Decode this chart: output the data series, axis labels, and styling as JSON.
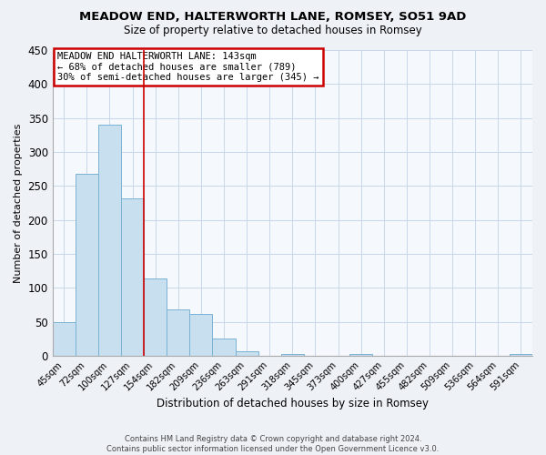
{
  "title": "MEADOW END, HALTERWORTH LANE, ROMSEY, SO51 9AD",
  "subtitle": "Size of property relative to detached houses in Romsey",
  "xlabel": "Distribution of detached houses by size in Romsey",
  "ylabel": "Number of detached properties",
  "bar_color": "#c8dff0",
  "bar_edge_color": "#7ab3d4",
  "categories": [
    "45sqm",
    "72sqm",
    "100sqm",
    "127sqm",
    "154sqm",
    "182sqm",
    "209sqm",
    "236sqm",
    "263sqm",
    "291sqm",
    "318sqm",
    "345sqm",
    "373sqm",
    "400sqm",
    "427sqm",
    "455sqm",
    "482sqm",
    "509sqm",
    "536sqm",
    "564sqm",
    "591sqm"
  ],
  "values": [
    50,
    268,
    340,
    232,
    114,
    68,
    62,
    25,
    7,
    0,
    2,
    0,
    0,
    2,
    0,
    0,
    0,
    0,
    0,
    0,
    2
  ],
  "ylim": [
    0,
    450
  ],
  "yticks": [
    0,
    50,
    100,
    150,
    200,
    250,
    300,
    350,
    400,
    450
  ],
  "annotation_text": "MEADOW END HALTERWORTH LANE: 143sqm\n← 68% of detached houses are smaller (789)\n30% of semi-detached houses are larger (345) →",
  "property_line_x": 3.5,
  "footnote": "Contains HM Land Registry data © Crown copyright and database right 2024.\nContains public sector information licensed under the Open Government Licence v3.0.",
  "background_color": "#eef2f7",
  "plot_bg_color": "#f5f8fc",
  "grid_color": "#c8d8e8",
  "vline_color": "#cc0000",
  "annotation_box_color": "#cc0000"
}
